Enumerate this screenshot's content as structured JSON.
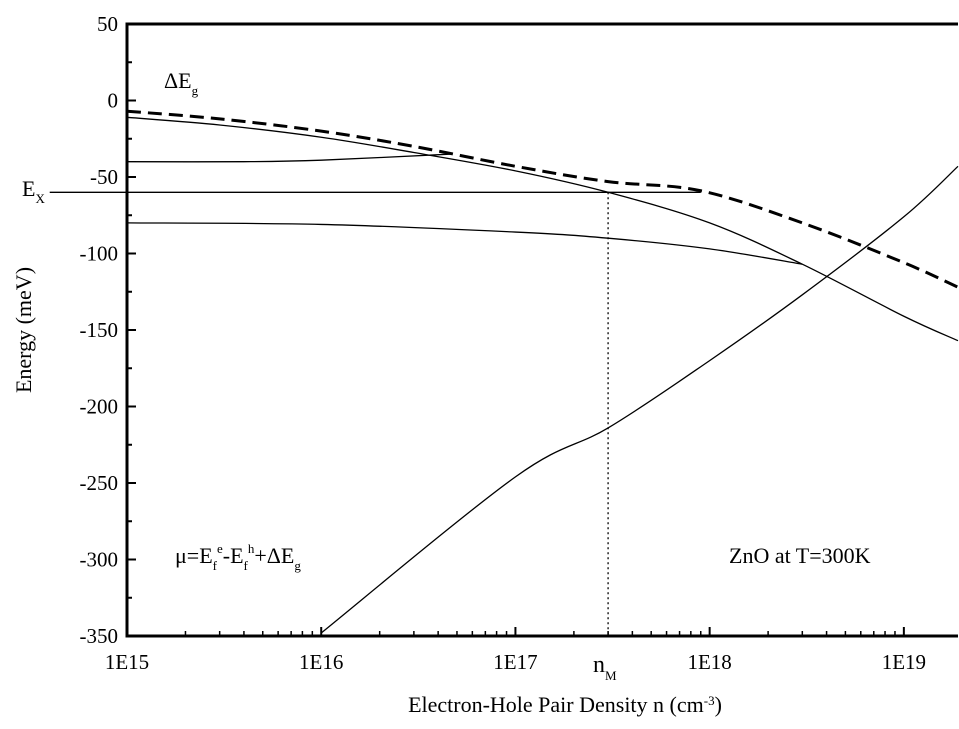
{
  "chart_data": {
    "type": "line",
    "title": "",
    "xlabel": "Electron-Hole Pair Density n (cm",
    "xlabel_sup": "-3",
    "xlabel_end": ")",
    "ylabel": "Energy (meV)",
    "x_scale": "log",
    "xlim": [
      1000000000000000.0,
      1.9e+19
    ],
    "ylim": [
      -350,
      50
    ],
    "x_ticks": [
      {
        "value": 1000000000000000.0,
        "label": "1E15"
      },
      {
        "value": 1e+16,
        "label": "1E16"
      },
      {
        "value": 1e+17,
        "label": "1E17"
      },
      {
        "value": 1e+18,
        "label": "1E18"
      },
      {
        "value": 1e+19,
        "label": "1E19"
      }
    ],
    "y_ticks": [
      {
        "value": 50,
        "label": "50"
      },
      {
        "value": 0,
        "label": "0"
      },
      {
        "value": -50,
        "label": "-50"
      },
      {
        "value": -100,
        "label": "-100"
      },
      {
        "value": -150,
        "label": "-150"
      },
      {
        "value": -200,
        "label": "-200"
      },
      {
        "value": -250,
        "label": "-250"
      },
      {
        "value": -300,
        "label": "-300"
      },
      {
        "value": -350,
        "label": "-350"
      }
    ],
    "grid": false,
    "series": [
      {
        "name": "ΔE_g",
        "style": "dashed",
        "x": [
          1000000000000000.0,
          3000000000000000.0,
          1e+16,
          3e+16,
          1e+17,
          3e+17,
          9e+17,
          3e+18,
          1e+19,
          1.9e+19
        ],
        "y": [
          -7,
          -12,
          -20,
          -30,
          -43,
          -53,
          -59,
          -80,
          -106,
          -122
        ]
      },
      {
        "style": "solid",
        "x": [
          1000000000000000.0,
          3000000000000000.0,
          1e+16,
          3e+16,
          1e+17,
          3e+17,
          1e+18,
          3e+18,
          1e+19,
          1.9e+19
        ],
        "y": [
          -11,
          -16,
          -24,
          -34,
          -46,
          -60,
          -80,
          -107,
          -141,
          -157
        ]
      },
      {
        "style": "solid",
        "x": [
          1000000000000000.0,
          4000000000000000.0,
          1e+16,
          4.7e+16
        ],
        "y": [
          -40,
          -40,
          -39,
          -35
        ]
      },
      {
        "style": "solid",
        "x": [
          1000000000000000.0,
          1e+16,
          1e+17,
          3e+17,
          1e+18,
          3e+18
        ],
        "y": [
          -80,
          -81,
          -86,
          -90,
          -97,
          -107
        ]
      },
      {
        "name": "μ=E_f^e-E_f^h+ΔE_g",
        "style": "solid",
        "x": [
          1e+16,
          1e+17,
          3e+17,
          1e+18,
          3e+18,
          1e+19,
          1.9e+19
        ],
        "y": [
          -348,
          -246,
          -214,
          -170,
          -127,
          -76,
          -43
        ]
      },
      {
        "name": "E_X",
        "style": "solid",
        "x": [
          400000000000000.0,
          9e+17
        ],
        "y": [
          -60,
          -60
        ]
      },
      {
        "name": "n_M",
        "style": "dotted",
        "x": [
          3e+17,
          3e+17
        ],
        "y": [
          -60,
          -350
        ]
      }
    ],
    "annotations": {
      "dEg": {
        "main": "ΔE",
        "sub": "g"
      },
      "ex": {
        "main": "E",
        "sub": "X"
      },
      "nm": {
        "main": "n",
        "sub": "M"
      },
      "mu": {
        "p1": "μ=E",
        "s1": "f",
        "u1": "e",
        "p2": "-E",
        "s2": "f",
        "u2": "h",
        "p3": "+ΔE",
        "s3": "g"
      },
      "zno": "ZnO at T=300K"
    }
  }
}
